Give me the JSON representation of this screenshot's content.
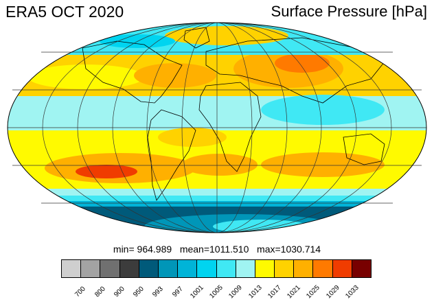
{
  "header": {
    "title": "ERA5 OCT 2020",
    "variable": "Surface Pressure [hPa]"
  },
  "stats": {
    "min_label": "min=",
    "min": "964.989",
    "mean_label": "mean=",
    "mean": "1011.510",
    "max_label": "max=",
    "max": "1030.714"
  },
  "map": {
    "projection": "mollweide",
    "graticule": "30° intervals",
    "ocean_base_color": "#9ef3f0",
    "coastline_color": "#000000",
    "graticule_color": "#333333"
  },
  "colorbar": {
    "colors": [
      "#cfcfcf",
      "#a3a3a3",
      "#707070",
      "#3c3c3c",
      "#005a7a",
      "#0096b8",
      "#00b4d8",
      "#00d4f0",
      "#40e8f4",
      "#a0f4f2",
      "#fffa00",
      "#ffd200",
      "#ffb000",
      "#ff7a00",
      "#f03c00",
      "#780000"
    ],
    "ticks": [
      "700",
      "800",
      "900",
      "950",
      "993",
      "997",
      "1001",
      "1005",
      "1009",
      "1013",
      "1017",
      "1021",
      "1025",
      "1029",
      "1033"
    ]
  }
}
